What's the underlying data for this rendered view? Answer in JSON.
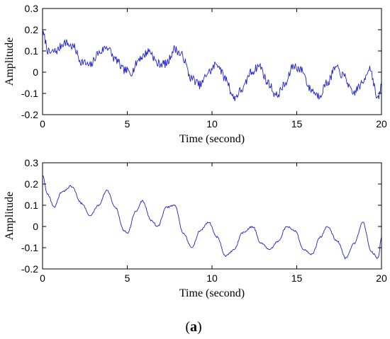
{
  "chart_data": [
    {
      "type": "line",
      "xlabel": "Time (second)",
      "ylabel": "Amplitude",
      "xlim": [
        0,
        20
      ],
      "ylim": [
        -0.2,
        0.3
      ],
      "xticks": [
        "0",
        "5",
        "10",
        "15",
        "20"
      ],
      "yticks": [
        "-0.2",
        "-0.1",
        "0",
        "0.1",
        "0.2",
        "0.3"
      ],
      "grid": false,
      "line_color": "#2020d0",
      "noise": 0.02,
      "series": [
        {
          "x": [
            0,
            0.4,
            0.8,
            1.3,
            1.8,
            2.3,
            2.8,
            3.3,
            3.8,
            4.3,
            4.8,
            5.2,
            5.8,
            6.3,
            6.8,
            7.3,
            7.8,
            8.2,
            8.8,
            9.3,
            9.8,
            10.3,
            10.8,
            11.3,
            11.8,
            12.3,
            12.8,
            13.3,
            13.8,
            14.3,
            14.8,
            15.3,
            15.8,
            16.3,
            16.8,
            17.3,
            17.8,
            18.3,
            18.8,
            19.3,
            19.8,
            20
          ],
          "values": [
            0.18,
            0.09,
            0.1,
            0.14,
            0.12,
            0.05,
            0.03,
            0.09,
            0.12,
            0.06,
            0.01,
            0.0,
            0.07,
            0.1,
            0.04,
            0.04,
            0.11,
            0.08,
            -0.03,
            -0.06,
            0.0,
            0.04,
            -0.03,
            -0.12,
            -0.08,
            0.0,
            0.03,
            -0.05,
            -0.11,
            -0.06,
            0.03,
            0.01,
            -0.08,
            -0.11,
            -0.05,
            0.02,
            -0.02,
            -0.1,
            -0.06,
            0.02,
            -0.13,
            -0.06
          ]
        }
      ]
    },
    {
      "type": "line",
      "xlabel": "Time (second)",
      "ylabel": "Amplitude",
      "xlim": [
        0,
        20
      ],
      "ylim": [
        -0.2,
        0.3
      ],
      "xticks": [
        "0",
        "5",
        "10",
        "15",
        "20"
      ],
      "yticks": [
        "-0.2",
        "-0.1",
        "0",
        "0.1",
        "0.2",
        "0.3"
      ],
      "grid": false,
      "line_color": "#2020d0",
      "noise": 0.004,
      "series": [
        {
          "x": [
            0,
            0.3,
            0.7,
            1.1,
            1.7,
            2.3,
            2.8,
            3.3,
            3.8,
            4.3,
            4.8,
            5.0,
            5.5,
            5.9,
            6.4,
            6.8,
            7.3,
            7.8,
            8.3,
            8.8,
            9.3,
            9.8,
            10.3,
            10.8,
            11.3,
            11.8,
            12.4,
            12.9,
            13.4,
            13.9,
            14.4,
            14.9,
            15.4,
            15.9,
            16.4,
            16.8,
            17.4,
            17.9,
            18.4,
            18.9,
            19.4,
            19.8,
            20
          ],
          "values": [
            0.24,
            0.15,
            0.09,
            0.16,
            0.19,
            0.11,
            0.05,
            0.1,
            0.17,
            0.09,
            -0.02,
            -0.03,
            0.07,
            0.12,
            0.03,
            0.0,
            0.09,
            0.1,
            -0.03,
            -0.1,
            -0.02,
            0.02,
            -0.05,
            -0.14,
            -0.11,
            -0.03,
            0.0,
            -0.08,
            -0.11,
            -0.07,
            0.0,
            -0.02,
            -0.11,
            -0.13,
            -0.05,
            0.0,
            -0.07,
            -0.15,
            -0.08,
            0.02,
            -0.12,
            -0.15,
            -0.05
          ]
        }
      ]
    }
  ],
  "caption": {
    "open": "(",
    "letter": "a",
    "close": ")"
  }
}
